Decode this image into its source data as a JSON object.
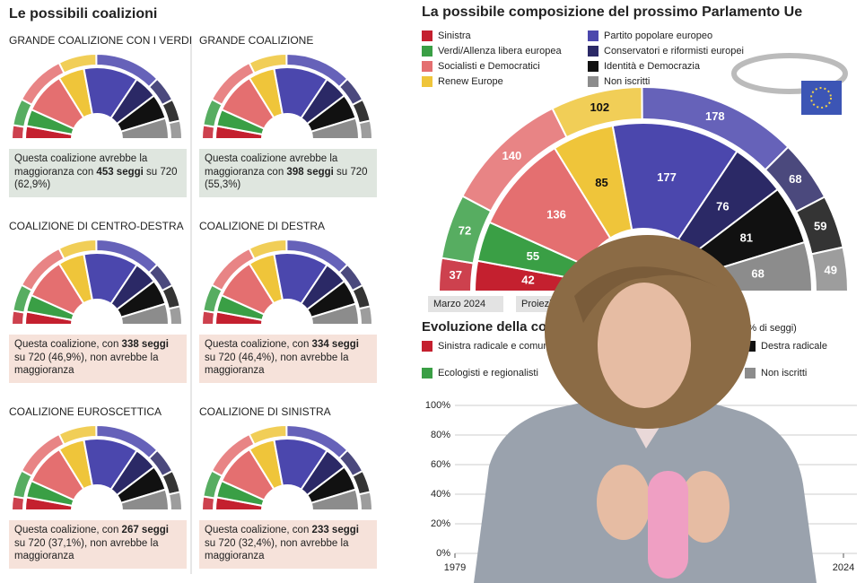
{
  "chart_data": [
    {
      "type": "hemicycle",
      "title": "La possibile composizione del prossimo Parlamento Ue",
      "categories": [
        "Marzo 2024",
        "Proiezione"
      ],
      "series": [
        {
          "name": "Sinistra",
          "color": "#c4202f",
          "values": [
            37,
            42
          ]
        },
        {
          "name": "Verdi/Allenza libera europea",
          "color": "#3a9f45",
          "values": [
            72,
            55
          ]
        },
        {
          "name": "Socialisti e Democratici",
          "color": "#e46f70",
          "values": [
            140,
            136
          ]
        },
        {
          "name": "Renew Europe",
          "color": "#efc53a",
          "values": [
            102,
            85
          ]
        },
        {
          "name": "Partito popolare europeo",
          "color": "#4b47ad",
          "values": [
            178,
            177
          ]
        },
        {
          "name": "Conservatori e riformisti europei",
          "color": "#2b2966",
          "values": [
            68,
            76
          ]
        },
        {
          "name": "Identità e Democrazia",
          "color": "#111111",
          "values": [
            59,
            81
          ]
        },
        {
          "name": "Non iscritti",
          "color": "#8c8c8c",
          "values": [
            49,
            68
          ]
        }
      ]
    },
    {
      "type": "area",
      "title": "Evoluzione della composizione del Parlamento Ue",
      "subtitle": "(% di seggi)",
      "legend": [
        {
          "name": "Sinistra radicale e comunisti",
          "color": "#c4202f"
        },
        {
          "name": "Ecologisti e regionalisti",
          "color": "#3a9f45"
        },
        {
          "name": "Destra radicale",
          "color": "#111111"
        },
        {
          "name": "Non iscritti",
          "color": "#8c8c8c"
        }
      ],
      "xlim": [
        1979,
        2024
      ],
      "xticks": [
        1979,
        2024
      ],
      "ylim": [
        0,
        100
      ],
      "yticks": [
        {
          "value": 0,
          "label": "0%"
        },
        {
          "value": 20,
          "label": "20%"
        },
        {
          "value": 40,
          "label": "40%"
        },
        {
          "value": 60,
          "label": "60%"
        },
        {
          "value": 80,
          "label": "80%"
        },
        {
          "value": 100,
          "label": "100%"
        }
      ]
    }
  ],
  "coalitions": {
    "title": "Le possibili coalizioni",
    "panels": [
      {
        "title": "GRANDE COALIZIONE CON I VERDI",
        "color": "#dfe6df",
        "text": [
          "Questa coalizione avrebbe la maggioranza con ",
          "453 seggi",
          " su 720 (62,9%)"
        ]
      },
      {
        "title": "GRANDE COALIZIONE",
        "color": "#dfe6df",
        "text": [
          "Questa coalizione avrebbe la maggioranza con ",
          "398 seggi",
          " su 720 (55,3%)"
        ]
      },
      {
        "title": "COALIZIONE DI CENTRO-DESTRA",
        "color": "#f6e2da",
        "text": [
          "Questa coalizione, con ",
          "338 seggi",
          " su 720 (46,9%), non avrebbe la maggioranza"
        ]
      },
      {
        "title": "COALIZIONE DI DESTRA",
        "color": "#f6e2da",
        "text": [
          "Questa coalizione, con ",
          "334 seggi",
          " su 720 (46,4%), non avrebbe la maggioranza"
        ]
      },
      {
        "title": "COALIZIONE EUROSCETTICA",
        "color": "#f6e2da",
        "text": [
          "Questa coalizione, con ",
          "267 seggi",
          " su 720 (37,1%), non avrebbe la maggioranza"
        ]
      },
      {
        "title": "COALIZIONE DI SINISTRA",
        "color": "#f6e2da",
        "text": [
          "Questa coalizione, con ",
          "233 seggi",
          " su 720 (32,4%), non avrebbe la maggioranza"
        ]
      }
    ]
  }
}
